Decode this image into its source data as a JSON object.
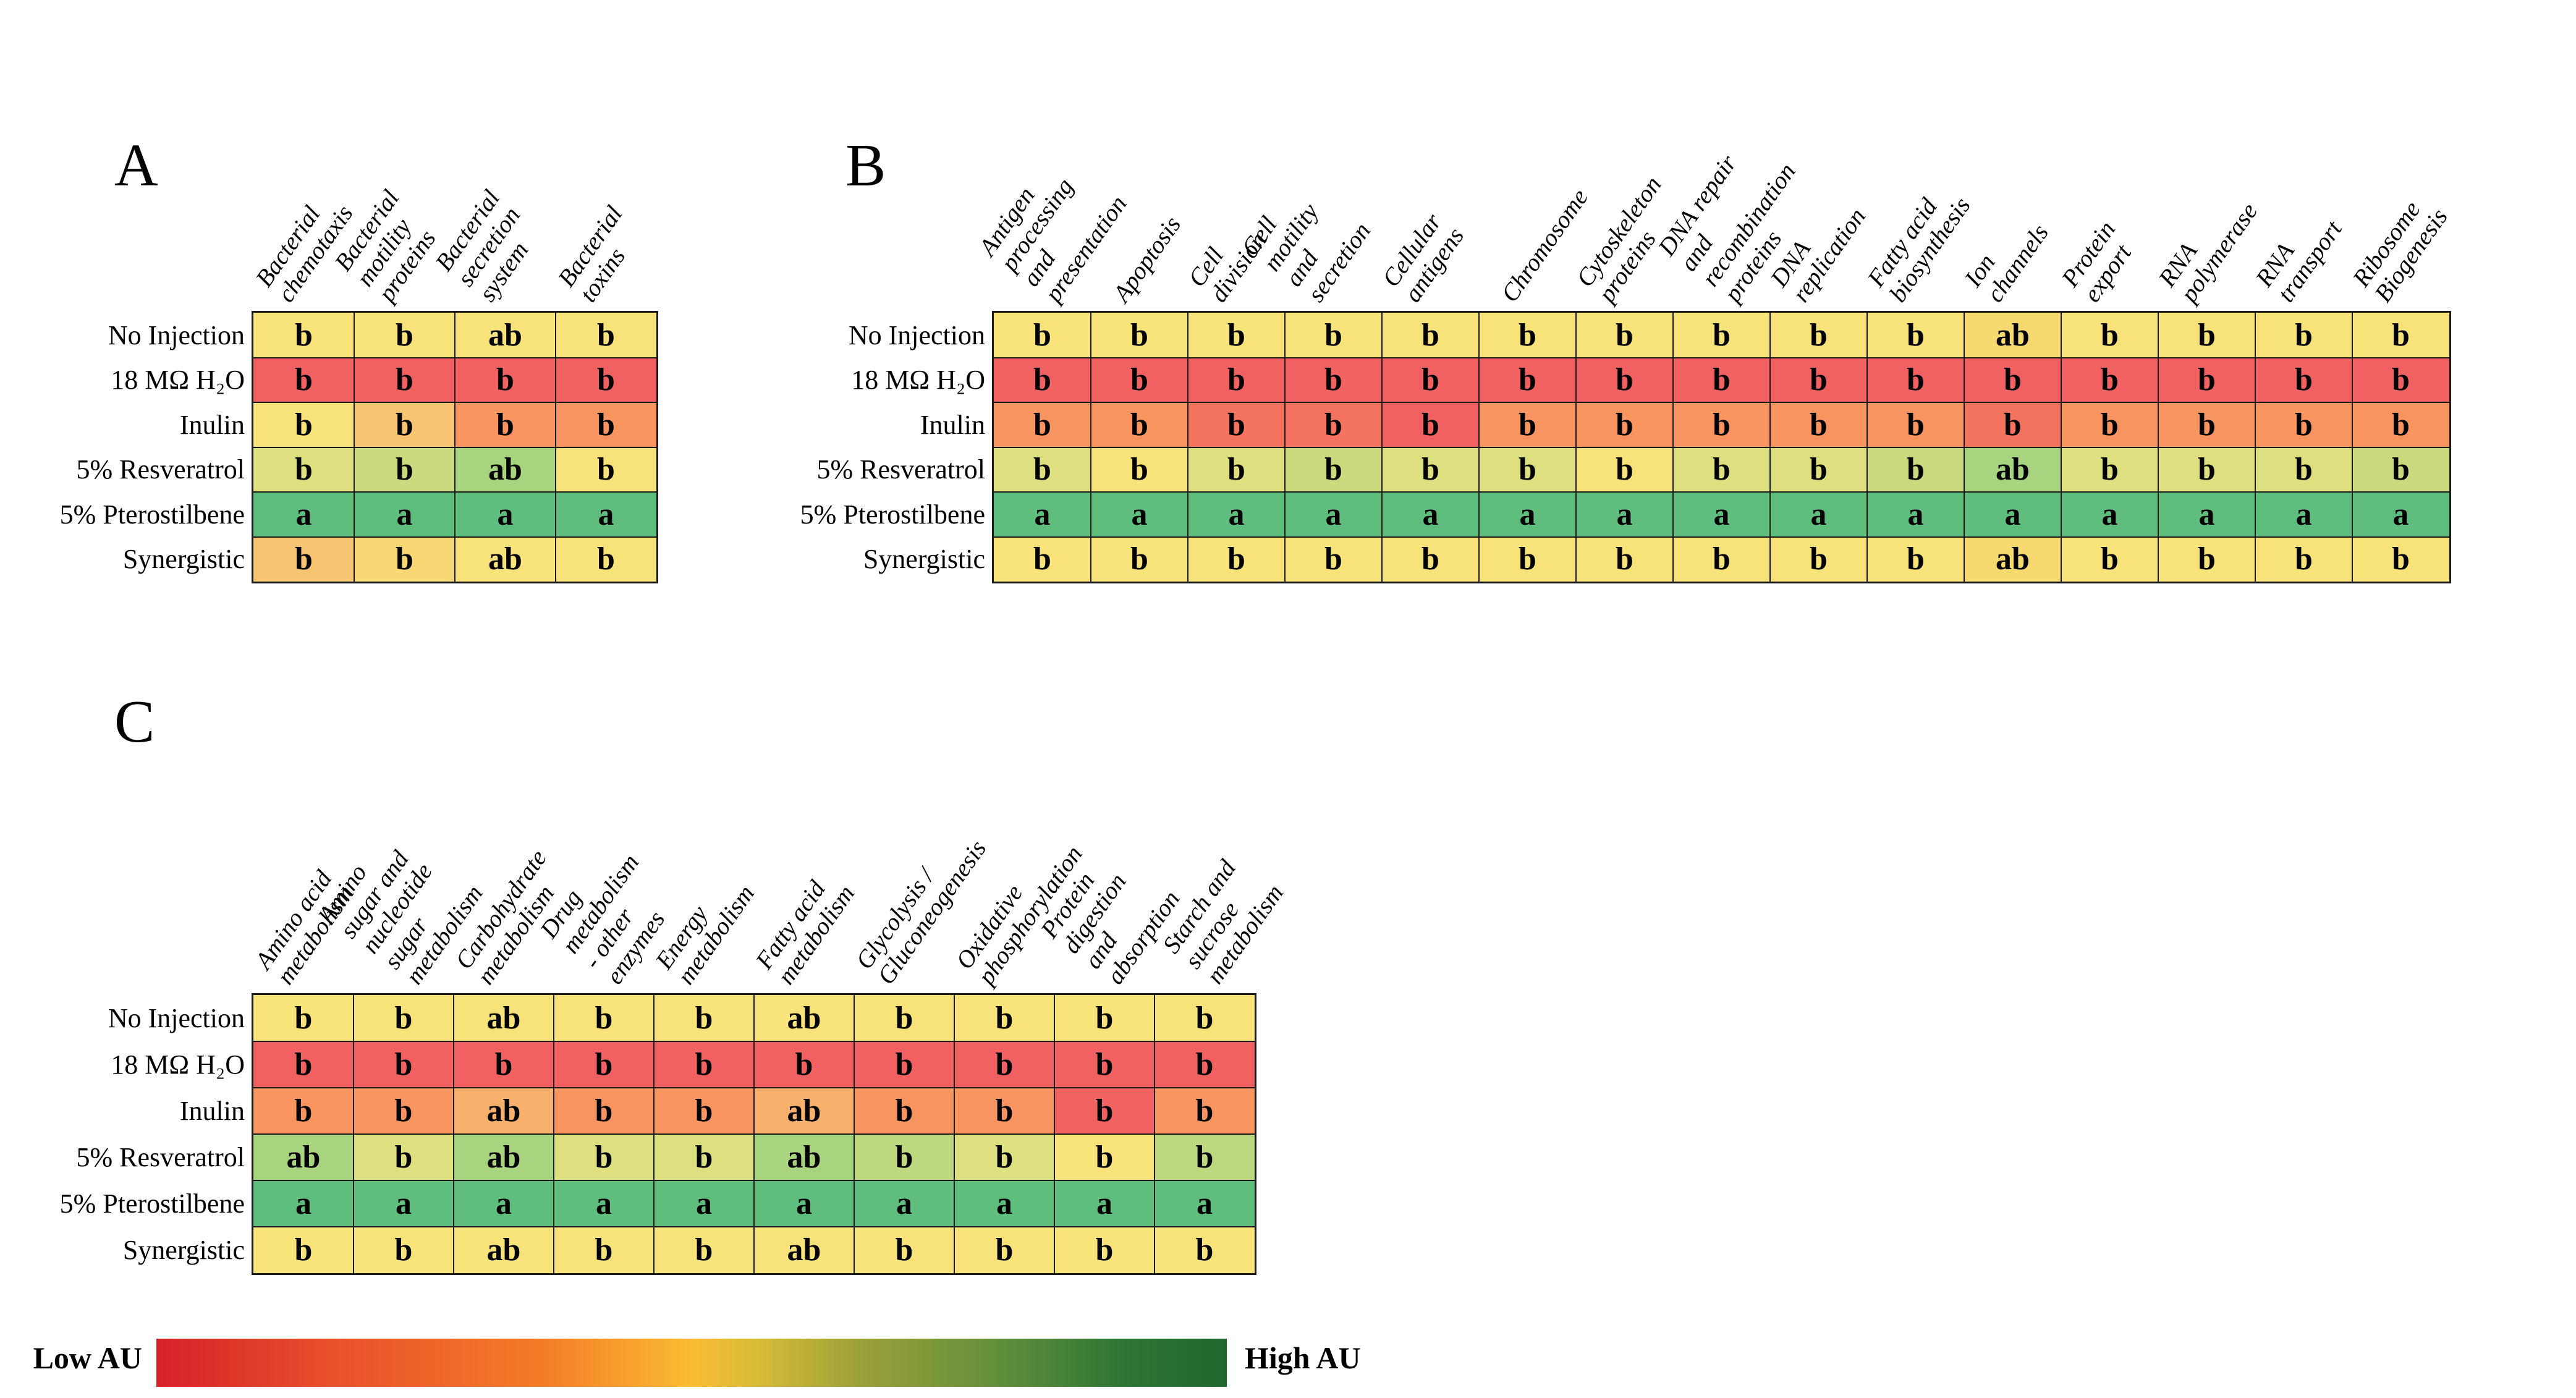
{
  "palette": {
    "y": "#F8E27A",
    "y2": "#F6DA70",
    "yg": "#DEE080",
    "yg2": "#CBDA7E",
    "lg": "#A8D47F",
    "lg2": "#BDD87E",
    "g": "#5FBE7D",
    "o": "#F7945F",
    "lo": "#F8B16C",
    "am": "#F7C471",
    "am2": "#F8D875",
    "ro": "#F3735F",
    "r": "#F16161"
  },
  "grid_line_color": "#1a1a1a",
  "chart_data": [
    {
      "type": "heatmap",
      "panel": "A",
      "rows": [
        "No Injection",
        "18 MΩ H₂O",
        "Inulin",
        "5% Resveratrol",
        "5% Pterostilbene",
        "Synergistic"
      ],
      "columns": [
        "Bacterial chemotaxis",
        "Bacterial motility proteins",
        "Bacterial secretion system",
        "Bacterial toxins"
      ],
      "cells": [
        [
          "y:b",
          "y:b",
          "y:ab",
          "y:b"
        ],
        [
          "r:b",
          "r:b",
          "r:b",
          "r:b"
        ],
        [
          "y:b",
          "am:b",
          "o:b",
          "o:b"
        ],
        [
          "yg:b",
          "yg2:b",
          "lg:ab",
          "y:b"
        ],
        [
          "g:a",
          "g:a",
          "g:a",
          "g:a"
        ],
        [
          "am:b",
          "am2:b",
          "y:ab",
          "y:b"
        ]
      ]
    },
    {
      "type": "heatmap",
      "panel": "B",
      "rows": [
        "No Injection",
        "18 MΩ H₂O",
        "Inulin",
        "5% Resveratrol",
        "5% Pterostilbene",
        "Synergistic"
      ],
      "columns": [
        "Antigen processing and\npresentation",
        "Apoptosis",
        "Cell division",
        "Cell motility and secretion",
        "Cellular antigens",
        "Chromosome",
        "Cytoskeleton proteins",
        "DNA repair and\nrecombination proteins",
        "DNA replication",
        "Fatty acid biosynthesis",
        "Ion channels",
        "Protein export",
        "RNA polymerase",
        "RNA transport",
        "Ribosome Biogenesis"
      ],
      "cells": [
        [
          "y:b",
          "y:b",
          "y:b",
          "y:b",
          "y:b",
          "y:b",
          "y:b",
          "y:b",
          "y:b",
          "y:b",
          "y2:ab",
          "y:b",
          "y:b",
          "y:b",
          "y:b"
        ],
        [
          "r:b",
          "r:b",
          "r:b",
          "r:b",
          "r:b",
          "r:b",
          "r:b",
          "r:b",
          "r:b",
          "r:b",
          "r:b",
          "r:b",
          "r:b",
          "r:b",
          "r:b"
        ],
        [
          "o:b",
          "o:b",
          "ro:b",
          "ro:b",
          "r:b",
          "o:b",
          "o:b",
          "o:b",
          "o:b",
          "o:b",
          "ro:b",
          "o:b",
          "o:b",
          "o:b",
          "o:b"
        ],
        [
          "yg:b",
          "y:b",
          "yg:b",
          "yg2:b",
          "yg:b",
          "yg:b",
          "y:b",
          "yg:b",
          "yg:b",
          "yg2:b",
          "lg:ab",
          "yg:b",
          "yg:b",
          "yg:b",
          "yg2:b"
        ],
        [
          "g:a",
          "g:a",
          "g:a",
          "g:a",
          "g:a",
          "g:a",
          "g:a",
          "g:a",
          "g:a",
          "g:a",
          "g:a",
          "g:a",
          "g:a",
          "g:a",
          "g:a"
        ],
        [
          "y:b",
          "y:b",
          "y:b",
          "y:b",
          "y:b",
          "y:b",
          "y:b",
          "y:b",
          "y:b",
          "y:b",
          "y2:ab",
          "y:b",
          "y:b",
          "y:b",
          "y:b"
        ]
      ]
    },
    {
      "type": "heatmap",
      "panel": "C",
      "rows": [
        "No Injection",
        "18 MΩ H₂O",
        "Inulin",
        "5% Resveratrol",
        "5% Pterostilbene",
        "Synergistic"
      ],
      "columns": [
        "Amino acid metabolism",
        "Amino sugar and nucleotide\nsugar metabolism",
        "Carbohydrate metabolism",
        "Drug metabolism - other\nenzymes",
        "Energy metabolism",
        "Fatty acid metabolism",
        "Glycolysis / Gluconeogenesis",
        "Oxidative phosphorylation",
        "Protein digestion and\nabsorption",
        "Starch and sucrose\nmetabolism"
      ],
      "cells": [
        [
          "y:b",
          "y:b",
          "y:ab",
          "y:b",
          "y:b",
          "y:ab",
          "y:b",
          "y:b",
          "y:b",
          "y:b"
        ],
        [
          "r:b",
          "r:b",
          "r:b",
          "r:b",
          "r:b",
          "r:b",
          "r:b",
          "r:b",
          "r:b",
          "r:b"
        ],
        [
          "o:b",
          "o:b",
          "lo:ab",
          "o:b",
          "o:b",
          "lo:ab",
          "o:b",
          "o:b",
          "r:b",
          "o:b"
        ],
        [
          "lg:ab",
          "yg:b",
          "lg:ab",
          "yg:b",
          "yg:b",
          "lg:ab",
          "lg2:b",
          "yg:b",
          "y:b",
          "lg2:b"
        ],
        [
          "g:a",
          "g:a",
          "g:a",
          "g:a",
          "g:a",
          "g:a",
          "g:a",
          "g:a",
          "g:a",
          "g:a"
        ],
        [
          "y:b",
          "y:b",
          "y:ab",
          "y:b",
          "y:b",
          "y:ab",
          "y:b",
          "y:b",
          "y:b",
          "y:b"
        ]
      ]
    }
  ],
  "legend": {
    "low_label": "Low AU",
    "high_label": "High AU",
    "gradient_stops": [
      "#d6222a",
      "#e84f2b",
      "#f47c28",
      "#f9bc33",
      "#d9bc38",
      "#9aa039",
      "#64903c",
      "#2f7634",
      "#1f672f"
    ]
  }
}
